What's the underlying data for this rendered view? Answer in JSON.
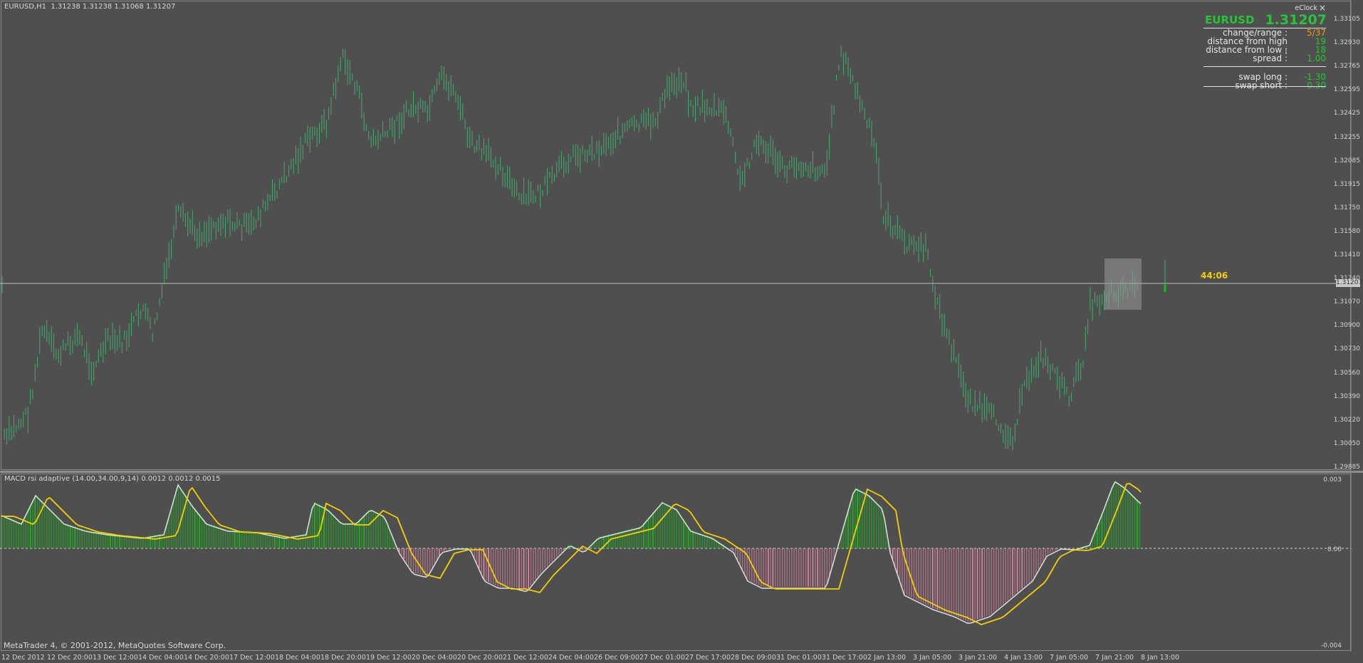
{
  "chart": {
    "title": "EURUSD,H1  1.31238 1.31238 1.31068 1.31207",
    "indicator_title": "MACD rsi adaptive (14.00,34.00,9,14) 0.0012 0.0012 0.0015",
    "copyright": "MetaTrader 4, © 2001-2012, MetaQuotes Software Corp.",
    "countdown": "44:06",
    "current_price_tag": "1.31207",
    "colors": {
      "background": "#4f4f4f",
      "bar": "#3fae6b",
      "macd_positive": "#12c012",
      "macd_negative": "#e58aa8",
      "signal": "#f5d000",
      "macd_line": "#e0e0e0"
    }
  },
  "price_axis": [
    "1.33105",
    "1.32930",
    "1.32765",
    "1.32595",
    "1.32425",
    "1.32255",
    "1.32085",
    "1.31915",
    "1.31750",
    "1.31580",
    "1.31410",
    "1.31240",
    "1.31070",
    "1.30900",
    "1.30730",
    "1.30560",
    "1.30390",
    "1.30220",
    "1.30050",
    "1.29885"
  ],
  "indicator_axis": [
    "0.003",
    "0.00",
    "-0.004"
  ],
  "time_axis": [
    "12 Dec 2012",
    "12 Dec 20:00",
    "13 Dec 12:00",
    "14 Dec 04:00",
    "14 Dec 20:00",
    "17 Dec 12:00",
    "18 Dec 04:00",
    "18 Dec 20:00",
    "19 Dec 12:00",
    "20 Dec 04:00",
    "20 Dec 20:00",
    "21 Dec 12:00",
    "24 Dec 04:00",
    "26 Dec 09:00",
    "27 Dec 01:00",
    "27 Dec 17:00",
    "28 Dec 09:00",
    "31 Dec 01:00",
    "31 Dec 17:00",
    "2 Jan 13:00",
    "3 Jan 05:00",
    "3 Jan 21:00",
    "4 Jan 13:00",
    "7 Jan 05:00",
    "7 Jan 21:00",
    "8 Jan 13:00"
  ],
  "eclock": {
    "brand": "eClock",
    "close": "×",
    "symbol": "EURUSD",
    "bid": "1.31207",
    "rows": [
      {
        "label": "change/range :",
        "value": "5/37",
        "color": "#f39a1c"
      },
      {
        "label": "distance from high :",
        "value": "19",
        "color": "#29c23a"
      },
      {
        "label": "distance from low :",
        "value": "18",
        "color": "#29c23a"
      },
      {
        "label": "spread :",
        "value": "1.00",
        "color": "#29c23a"
      },
      {
        "label": "swap long :",
        "value": "-1.30",
        "color": "#29c23a"
      },
      {
        "label": "swap short :",
        "value": "0.30",
        "color": "#29c23a"
      }
    ]
  }
}
